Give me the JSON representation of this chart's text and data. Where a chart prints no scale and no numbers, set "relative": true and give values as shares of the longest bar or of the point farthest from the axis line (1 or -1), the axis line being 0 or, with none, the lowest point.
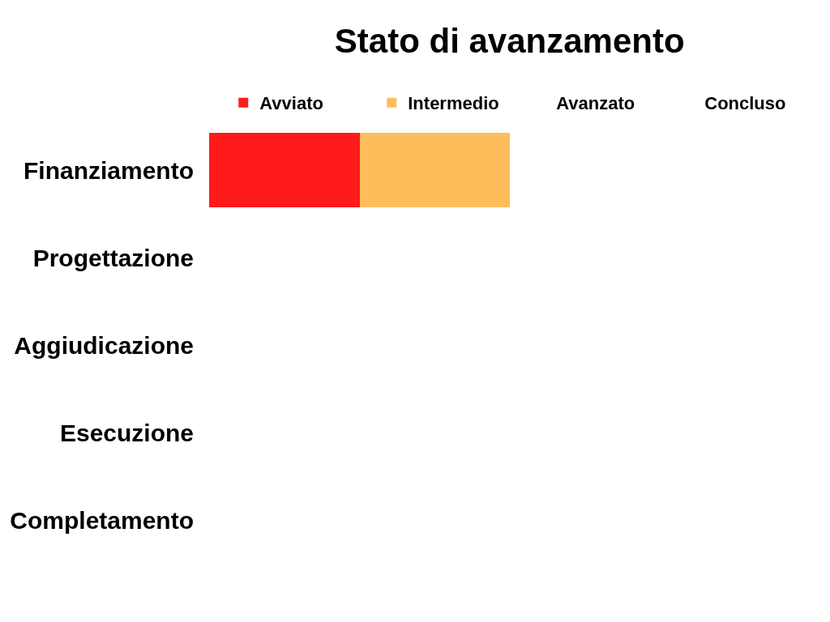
{
  "chart_data": {
    "type": "bar",
    "title": "Stato di avanzamento",
    "orientation": "horizontal",
    "stacked": true,
    "relative": true,
    "legend": "top",
    "categories": [
      "Finanziamento",
      "Progettazione",
      "Aggiudicazione",
      "Esecuzione",
      "Completamento"
    ],
    "series": [
      {
        "name": "Avviato",
        "color": "#ff1b1b",
        "values": [
          0.5,
          null,
          null,
          null,
          null
        ]
      },
      {
        "name": "Intermedio",
        "color": "#fdbd5b",
        "values": [
          0.5,
          null,
          null,
          null,
          null
        ]
      },
      {
        "name": "Avanzato",
        "values": [
          null,
          null,
          null,
          null,
          null
        ]
      },
      {
        "name": "Concluso",
        "values": [
          null,
          null,
          null,
          null,
          null
        ]
      }
    ]
  }
}
